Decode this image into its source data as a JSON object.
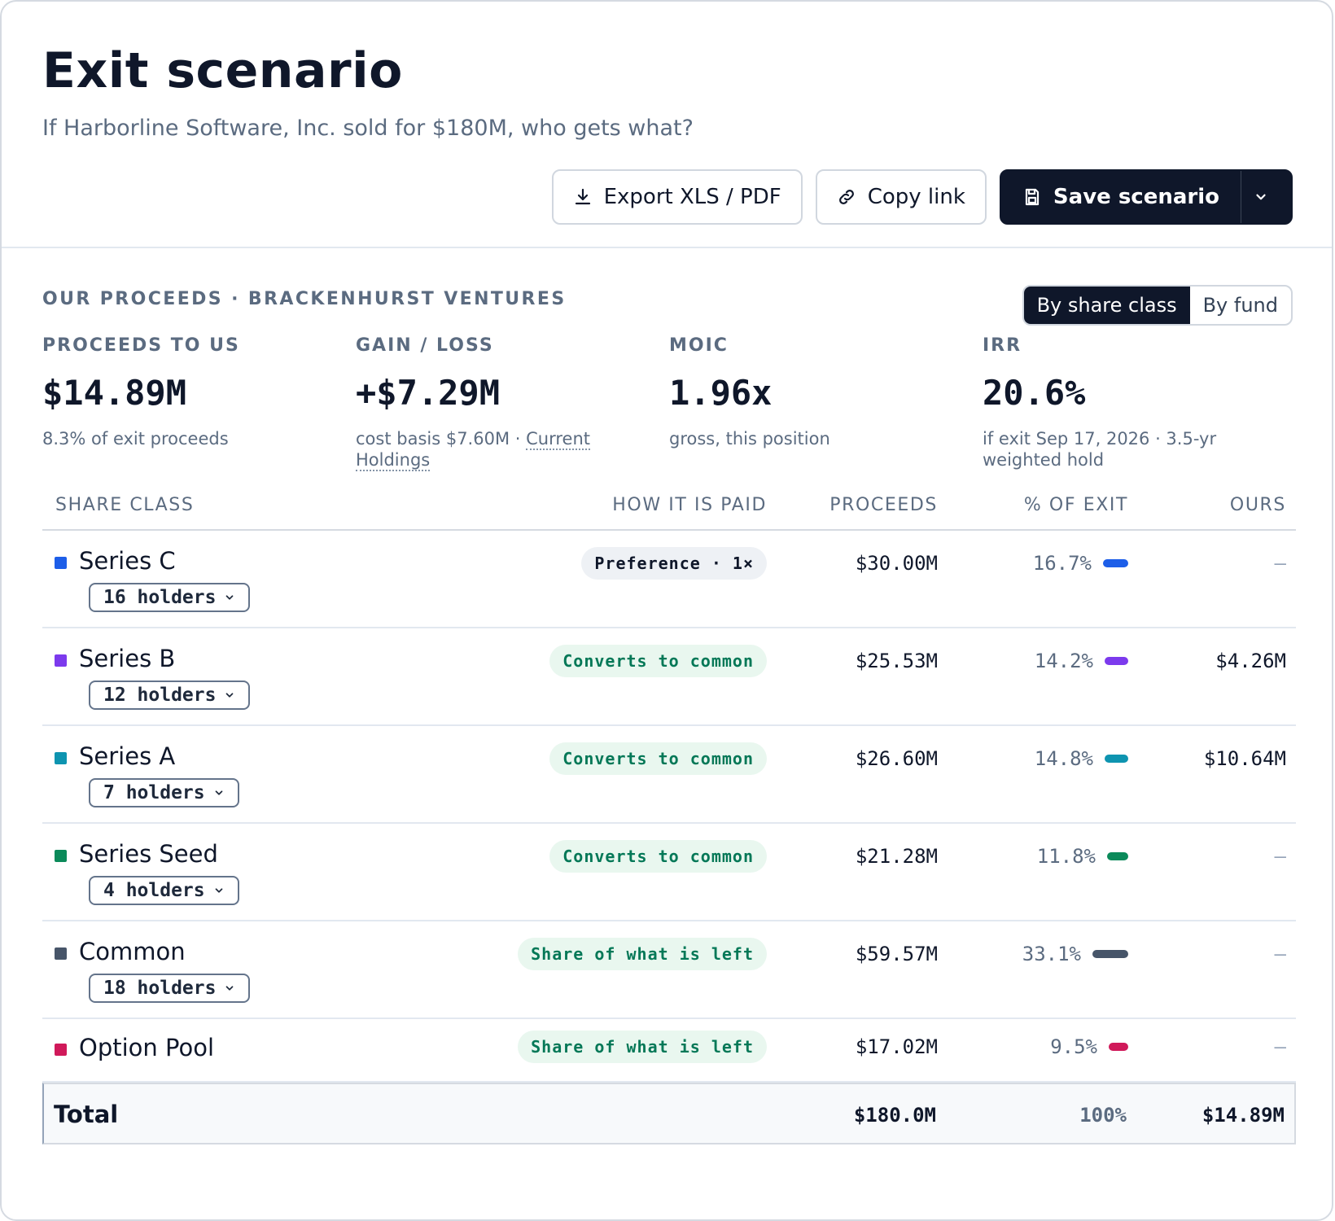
{
  "header": {
    "title": "Exit scenario",
    "subtitle": "If Harborline Software, Inc. sold for $180M, who gets what?",
    "export_label": "Export XLS / PDF",
    "copy_label": "Copy link",
    "save_label": "Save scenario"
  },
  "section": {
    "title": "OUR PROCEEDS · BRACKENHURST VENTURES",
    "toggle": [
      "By share class",
      "By fund"
    ],
    "active_toggle": "By share class"
  },
  "stats": [
    {
      "label": "PROCEEDS TO US",
      "value": "$14.89M",
      "note": "8.3% of exit proceeds"
    },
    {
      "label": "GAIN / LOSS",
      "value": "+$7.29M",
      "note": "cost basis $7.60M · ",
      "link": "Current Holdings"
    },
    {
      "label": "MOIC",
      "value": "1.96x",
      "note": "gross, this position"
    },
    {
      "label": "IRR",
      "value": "20.6%",
      "note": "if exit Sep 17, 2026 · 3.5-yr weighted hold"
    }
  ],
  "table": {
    "headers": {
      "share_class": "SHARE CLASS",
      "how_paid": "HOW IT IS PAID",
      "proceeds": "PROCEEDS",
      "pct": "% OF EXIT",
      "ours": "OURS"
    },
    "rows": [
      {
        "name": "Series C",
        "holders": "16 holders",
        "paid": "Preference · 1×",
        "paid_type": "pref",
        "proceeds": "$30.00M",
        "pct": "16.7%",
        "pct_value": 16.7,
        "ours": "—",
        "color": "#1d5ee8"
      },
      {
        "name": "Series B",
        "holders": "12 holders",
        "paid": "Converts to common",
        "paid_type": "conv",
        "proceeds": "$25.53M",
        "pct": "14.2%",
        "pct_value": 14.2,
        "ours": "$4.26M",
        "color": "#7c3aed"
      },
      {
        "name": "Series A",
        "holders": "7 holders",
        "paid": "Converts to common",
        "paid_type": "conv",
        "proceeds": "$26.60M",
        "pct": "14.8%",
        "pct_value": 14.8,
        "ours": "$10.64M",
        "color": "#0e94b0"
      },
      {
        "name": "Series Seed",
        "holders": "4 holders",
        "paid": "Converts to common",
        "paid_type": "conv",
        "proceeds": "$21.28M",
        "pct": "11.8%",
        "pct_value": 11.8,
        "ours": "—",
        "color": "#0b8a5a"
      },
      {
        "name": "Common",
        "holders": "18 holders",
        "paid": "Share of what is left",
        "paid_type": "conv",
        "proceeds": "$59.57M",
        "pct": "33.1%",
        "pct_value": 33.1,
        "ours": "—",
        "color": "#475569"
      },
      {
        "name": "Option Pool",
        "holders": "",
        "paid": "Share of what is left",
        "paid_type": "conv",
        "proceeds": "$17.02M",
        "pct": "9.5%",
        "pct_value": 9.5,
        "ours": "—",
        "color": "#d0195a"
      }
    ],
    "total": {
      "label": "Total",
      "proceeds": "$180.0M",
      "pct": "100%",
      "ours": "$14.89M"
    }
  }
}
